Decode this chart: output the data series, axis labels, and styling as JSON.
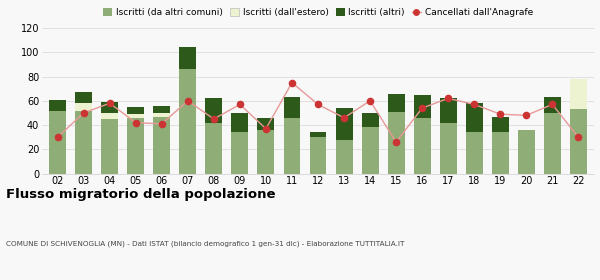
{
  "years": [
    "02",
    "03",
    "04",
    "05",
    "06",
    "07",
    "08",
    "09",
    "10",
    "11",
    "12",
    "13",
    "14",
    "15",
    "16",
    "17",
    "18",
    "19",
    "20",
    "21",
    "22"
  ],
  "iscritti_altri_comuni": [
    52,
    52,
    45,
    46,
    47,
    86,
    42,
    34,
    36,
    46,
    30,
    28,
    38,
    51,
    46,
    42,
    34,
    34,
    36,
    50,
    53
  ],
  "iscritti_estero": [
    0,
    6,
    5,
    3,
    3,
    0,
    0,
    0,
    0,
    0,
    0,
    0,
    0,
    0,
    0,
    0,
    0,
    0,
    0,
    0,
    25
  ],
  "iscritti_altri": [
    9,
    9,
    9,
    6,
    6,
    18,
    20,
    16,
    10,
    17,
    4,
    26,
    12,
    15,
    19,
    20,
    24,
    13,
    0,
    13,
    0
  ],
  "cancellati": [
    30,
    50,
    58,
    42,
    41,
    60,
    45,
    57,
    37,
    75,
    57,
    46,
    60,
    26,
    54,
    62,
    57,
    49,
    48,
    57,
    30
  ],
  "color_iscritti_comuni": "#8fad76",
  "color_iscritti_estero": "#edf2d0",
  "color_iscritti_altri": "#2d5a1b",
  "color_cancellati": "#cc3333",
  "color_line": "#e89898",
  "title": "Flusso migratorio della popolazione",
  "subtitle": "COMUNE DI SCHIVENOGLIA (MN) - Dati ISTAT (bilancio demografico 1 gen-31 dic) - Elaborazione TUTTITALIA.IT",
  "ylim": [
    0,
    120
  ],
  "yticks": [
    0,
    20,
    40,
    60,
    80,
    100,
    120
  ],
  "bg_color": "#f8f8f8",
  "grid_color": "#e0e0e0",
  "legend_labels": [
    "Iscritti (da altri comuni)",
    "Iscritti (dall'estero)",
    "Iscritti (altri)",
    "Cancellati dall'Anagrafe"
  ]
}
